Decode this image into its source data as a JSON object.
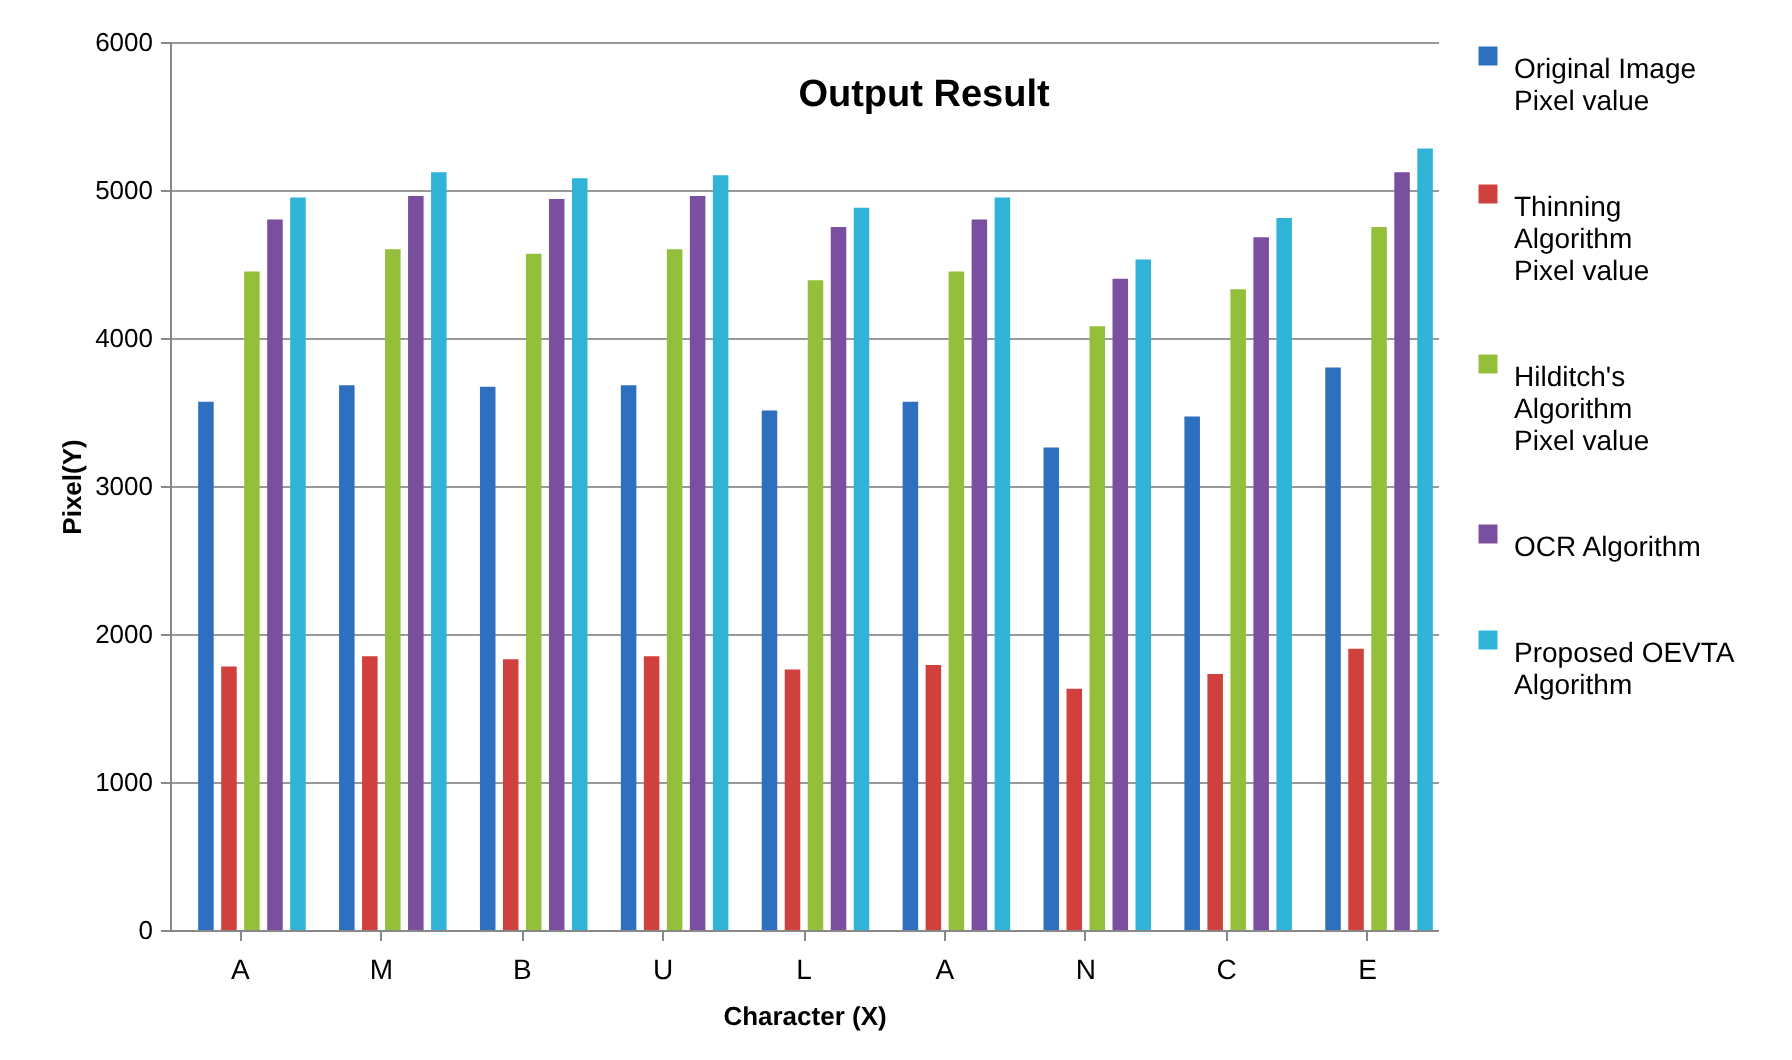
{
  "chart_data": {
    "type": "bar",
    "title": "Output Result",
    "xlabel": "Character (X)",
    "ylabel": "Pixel(Y)",
    "categories": [
      "A",
      "M",
      "B",
      "U",
      "L",
      "A",
      "N",
      "C",
      "E"
    ],
    "series": [
      {
        "name": "Original Image Pixel value",
        "color": "#2e6fc0",
        "values": [
          3570,
          3680,
          3670,
          3680,
          3510,
          3570,
          3260,
          3470,
          3800
        ]
      },
      {
        "name": "Thinning Algorithm Pixel value",
        "color": "#d0403c",
        "values": [
          1780,
          1850,
          1830,
          1850,
          1760,
          1790,
          1630,
          1730,
          1900
        ]
      },
      {
        "name": "Hilditch's Algorithm Pixel value",
        "color": "#93bf3a",
        "values": [
          4450,
          4600,
          4570,
          4600,
          4390,
          4450,
          4080,
          4330,
          4750
        ]
      },
      {
        "name": "OCR Algorithm",
        "color": "#7a4fa0",
        "values": [
          4800,
          4960,
          4940,
          4960,
          4750,
          4800,
          4400,
          4680,
          5120
        ]
      },
      {
        "name": "Proposed OEVTA Algorithm",
        "color": "#2fb3d6",
        "values": [
          4950,
          5120,
          5080,
          5100,
          4880,
          4950,
          4530,
          4810,
          5280
        ]
      }
    ],
    "ylim": [
      0,
      6000
    ],
    "yticks": [
      0,
      1000,
      2000,
      3000,
      4000,
      5000,
      6000
    ],
    "grid": "y",
    "legend": "right"
  }
}
